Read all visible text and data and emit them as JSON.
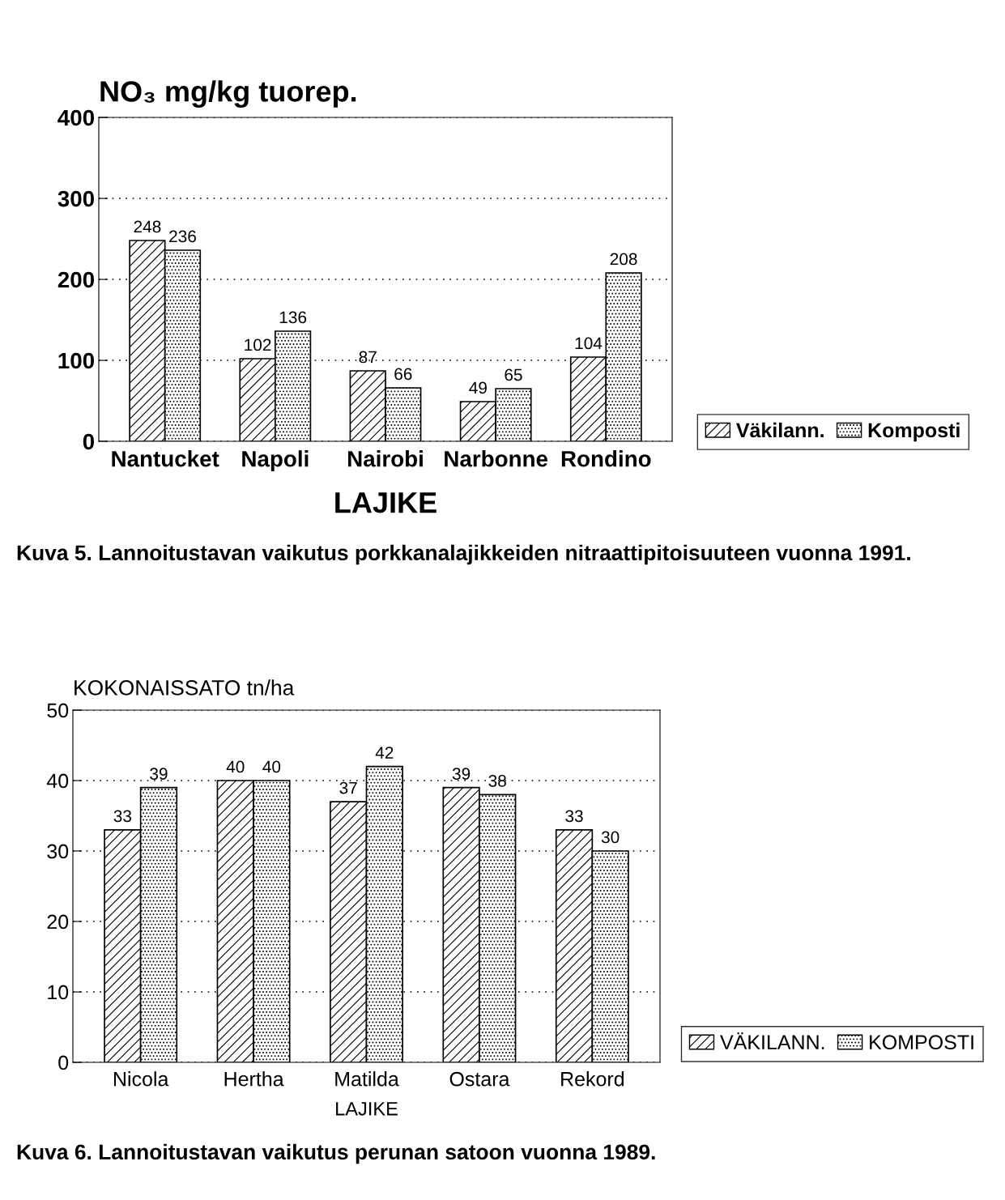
{
  "chart_data": [
    {
      "type": "bar",
      "ylabel": "NO₃ mg/kg tuorep.",
      "xlabel": "LAJIKE",
      "categories": [
        "Nantucket",
        "Napoli",
        "Nairobi",
        "Narbonne",
        "Rondino"
      ],
      "series": [
        {
          "name": "Väkilann.",
          "color": "#000000",
          "values": [
            248,
            102,
            87,
            49,
            104
          ]
        },
        {
          "name": "Komposti",
          "color": "#000000",
          "values": [
            236,
            136,
            66,
            65,
            208
          ]
        }
      ],
      "ylim": [
        0,
        400
      ],
      "yticks": [
        0,
        100,
        200,
        300,
        400
      ],
      "grid": "y",
      "legend": "right",
      "data_labels": true,
      "annotations": [
        "Kuva 5. Lannoitustavan vaikutus porkkanalajikkeiden nitraattipitoisuuteen vuonna 1991."
      ]
    },
    {
      "type": "bar",
      "ylabel": "KOKONAISSATO tn/ha",
      "xlabel": "LAJIKE",
      "categories": [
        "Nicola",
        "Hertha",
        "Matilda",
        "Ostara",
        "Rekord"
      ],
      "series": [
        {
          "name": "VÄKILANN.",
          "color": "#000000",
          "values": [
            33,
            40,
            37,
            39,
            33
          ]
        },
        {
          "name": "KOMPOSTI",
          "color": "#000000",
          "values": [
            39,
            40,
            42,
            38,
            30
          ]
        }
      ],
      "ylim": [
        0,
        50
      ],
      "yticks": [
        0,
        10,
        20,
        30,
        40,
        50
      ],
      "grid": "y",
      "legend": "right",
      "data_labels": true,
      "annotations": [
        "Kuva 6. Lannoitustavan vaikutus perunan satoon vuonna 1989."
      ]
    }
  ]
}
